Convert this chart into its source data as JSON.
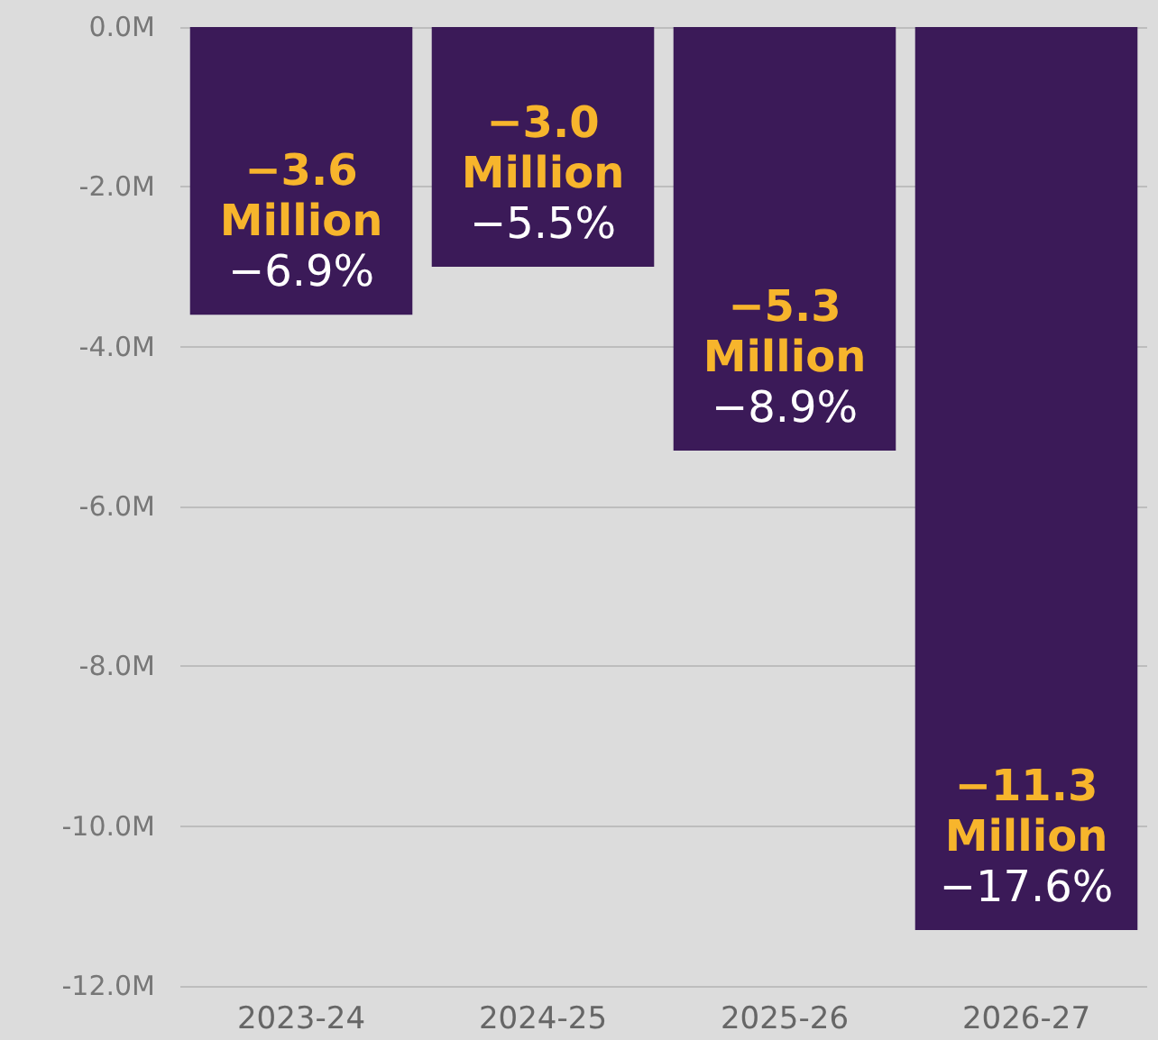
{
  "chart_data": {
    "type": "bar",
    "categories": [
      "2023-24",
      "2024-25",
      "2025-26",
      "2026-27"
    ],
    "values": [
      -3.6,
      -3.0,
      -5.3,
      -11.3
    ],
    "value_labels": [
      "−3.6\nMillion\n−6.9%",
      "−3.0\nMillion\n−5.5%",
      "−5.3\nMillion\n−8.9%",
      "−11.3\nMillion\n−17.6%"
    ],
    "color": "#3b1a58",
    "ylim": [
      -12,
      0
    ],
    "yticks": [
      {
        "value": 0,
        "label": "0.0M"
      },
      {
        "value": -2,
        "label": "-2.0M"
      },
      {
        "value": -4,
        "label": "-4.0M"
      },
      {
        "value": -6,
        "label": "-6.0M"
      },
      {
        "value": -8,
        "label": "-8.0M"
      },
      {
        "value": -10,
        "label": "-10.0M"
      },
      {
        "value": -12,
        "label": "-12.0M"
      }
    ],
    "grid": "y"
  }
}
